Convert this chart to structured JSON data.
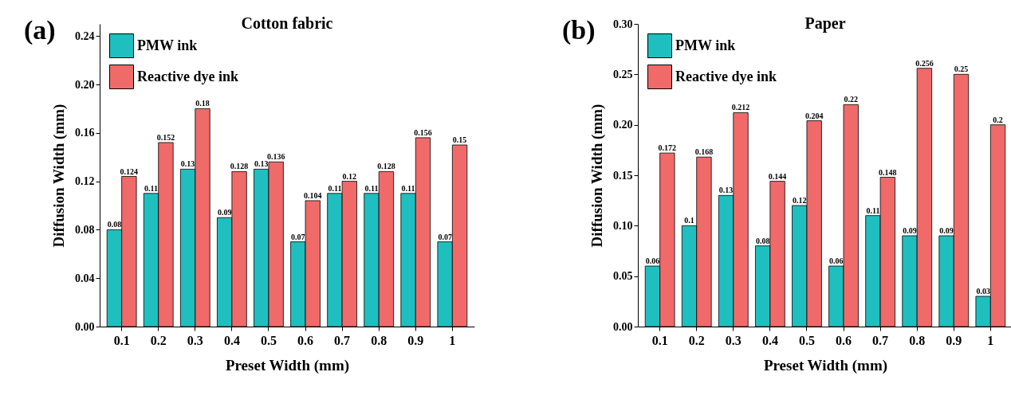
{
  "chart_data": [
    {
      "type": "bar",
      "title": "Cotton fabric",
      "xlabel": "Preset Width (mm)",
      "ylabel": "Diffusion Width (mm)",
      "annotations": [
        "(a)"
      ],
      "categories": [
        "0.1",
        "0.2",
        "0.3",
        "0.4",
        "0.5",
        "0.6",
        "0.7",
        "0.8",
        "0.9",
        "1"
      ],
      "series": [
        {
          "name": "PMW ink",
          "color": "#1fbfbf",
          "values": [
            0.08,
            0.11,
            0.13,
            0.09,
            0.13,
            0.07,
            0.11,
            0.11,
            0.11,
            0.07
          ]
        },
        {
          "name": "Reactive dye ink",
          "color": "#f06a6a",
          "values": [
            0.124,
            0.152,
            0.18,
            0.128,
            0.136,
            0.104,
            0.12,
            0.128,
            0.156,
            0.15
          ]
        }
      ],
      "ylim": [
        0,
        0.25
      ],
      "yticks": [
        {
          "value": 0,
          "label": "0.00"
        },
        0.04,
        0.08,
        0.12,
        0.16,
        {
          "value": 0.2,
          "label": "0.20"
        },
        0.24
      ],
      "data_labels": true,
      "grid": false,
      "legend": "top left"
    },
    {
      "type": "bar",
      "title": "Paper",
      "xlabel": "Preset Width (mm)",
      "ylabel": "Diffusion Width (mm)",
      "annotations": [
        "(b)"
      ],
      "categories": [
        "0.1",
        "0.2",
        "0.3",
        "0.4",
        "0.5",
        "0.6",
        "0.7",
        "0.8",
        "0.9",
        "1"
      ],
      "series": [
        {
          "name": "PMW ink",
          "color": "#1fbfbf",
          "values": [
            0.06,
            0.1,
            0.13,
            0.08,
            0.12,
            0.06,
            0.11,
            0.09,
            0.09,
            0.03
          ]
        },
        {
          "name": "Reactive dye ink",
          "color": "#f06a6a",
          "values": [
            0.172,
            0.168,
            0.212,
            0.144,
            0.204,
            0.22,
            0.148,
            0.256,
            0.25,
            0.2
          ]
        }
      ],
      "ylim": [
        0,
        0.3
      ],
      "yticks": [
        {
          "value": 0,
          "label": "0.00"
        },
        0.05,
        {
          "value": 0.1,
          "label": "0.10"
        },
        0.15,
        {
          "value": 0.2,
          "label": "0.20"
        },
        0.25,
        {
          "value": 0.3,
          "label": "0.30"
        }
      ],
      "data_labels": true,
      "grid": false,
      "legend": "top left"
    }
  ]
}
